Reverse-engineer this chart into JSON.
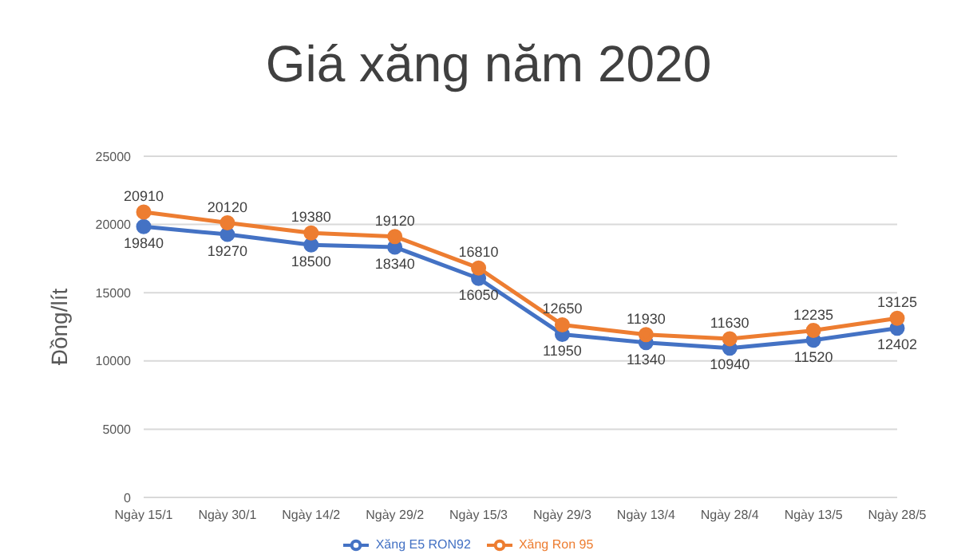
{
  "chart_data": {
    "type": "line",
    "title": "Giá xăng năm 2020",
    "ylabel": "Đồng/lít",
    "categories": [
      "Ngày 15/1",
      "Ngày 30/1",
      "Ngày 14/2",
      "Ngày 29/2",
      "Ngày 15/3",
      "Ngày 29/3",
      "Ngày 13/4",
      "Ngày 28/4",
      "Ngày 13/5",
      "Ngày 28/5"
    ],
    "series": [
      {
        "name": "Xăng E5 RON92",
        "color": "#4472c4",
        "values": [
          19840,
          19270,
          18500,
          18340,
          16050,
          11950,
          11340,
          10940,
          11520,
          12402
        ]
      },
      {
        "name": "Xăng Ron 95",
        "color": "#ed7d31",
        "values": [
          20910,
          20120,
          19380,
          19120,
          16810,
          12650,
          11930,
          11630,
          12235,
          13125
        ]
      }
    ],
    "ylim": [
      0,
      25000
    ],
    "yticks": [
      0,
      5000,
      10000,
      15000,
      20000,
      25000
    ],
    "grid": "y",
    "legend": "bottom",
    "marker": "circle",
    "line_style": "solid",
    "data_labels": true
  }
}
